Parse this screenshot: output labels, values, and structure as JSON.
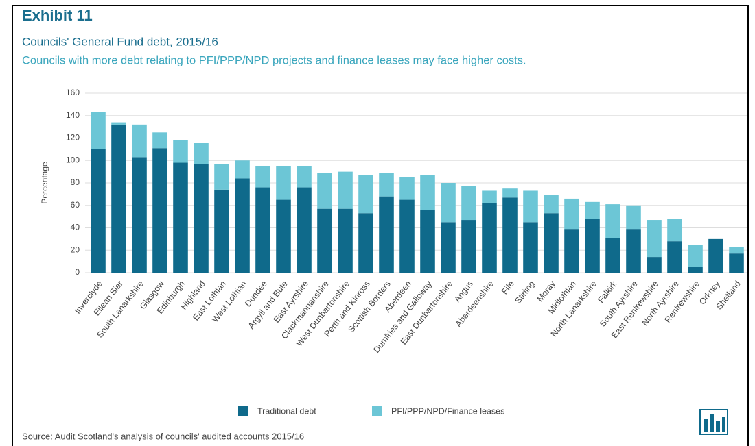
{
  "chart_data": {
    "type": "stacked_bar",
    "title": "Exhibit 11",
    "subtitle": "Councils' General Fund debt, 2015/16",
    "description": "Councils with more debt relating to PFI/PPP/NPD projects and finance leases may face higher costs.",
    "y_label": "Percentage",
    "source": "Source: Audit Scotland's analysis of councils' audited accounts 2015/16",
    "categories": [
      "Inverclyde",
      "Eilean Siar",
      "South Lanarkshire",
      "Glasgow",
      "Edinburgh",
      "Highland",
      "East Lothian",
      "West Lothian",
      "Dundee",
      "Argyll and Bute",
      "East Ayrshire",
      "Clackmannanshire",
      "West Dunbartonshire",
      "Perth and Kinross",
      "Scottish Borders",
      "Aberdeen",
      "Dumfries and Galloway",
      "East Dunbartonshire",
      "Angus",
      "Aberdeenshire",
      "Fife",
      "Stirling",
      "Moray",
      "Midlothian",
      "North Lanarkshire",
      "Falkirk",
      "South Ayrshire",
      "East Renfrewshire",
      "North Ayrshire",
      "Renfrewshire",
      "Orkney",
      "Shetland"
    ],
    "series": [
      {
        "name": "Traditional debt",
        "color": "#0f6a8b",
        "values": [
          110,
          132,
          103,
          111,
          98,
          97,
          74,
          84,
          76,
          65,
          76,
          57,
          57,
          53,
          68,
          65,
          56,
          45,
          47,
          62,
          67,
          45,
          53,
          39,
          48,
          31,
          39,
          14,
          28,
          5,
          30,
          17
        ]
      },
      {
        "name": "PFI/PPP/NPD/Finance leases",
        "color": "#6cc6d6",
        "values": [
          33,
          2,
          29,
          14,
          20,
          19,
          23,
          16,
          19,
          30,
          19,
          32,
          33,
          34,
          21,
          20,
          31,
          35,
          30,
          11,
          8,
          28,
          16,
          27,
          15,
          30,
          21,
          33,
          20,
          20,
          0,
          6
        ]
      }
    ],
    "ylim": [
      0,
      160
    ],
    "yticks": [
      0,
      20,
      40,
      60,
      80,
      100,
      120,
      140,
      160
    ],
    "grid": true
  }
}
